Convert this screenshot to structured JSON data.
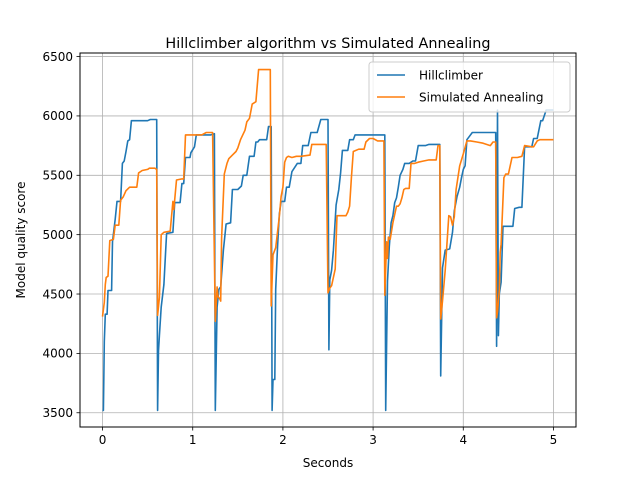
{
  "chart_data": {
    "type": "line",
    "title": "Hillclimber algorithm vs Simulated Annealing",
    "xlabel": "Seconds",
    "ylabel": "Model quality score",
    "xlim": [
      -0.25,
      5.25
    ],
    "ylim": [
      3380,
      6530
    ],
    "xticks": [
      0,
      1,
      2,
      3,
      4,
      5
    ],
    "yticks": [
      3500,
      4000,
      4500,
      5000,
      5500,
      6000,
      6500
    ],
    "grid": true,
    "legend_position": "top-right",
    "series": [
      {
        "name": "Hillclimber",
        "color": "#1f77b4",
        "points": [
          [
            0.0,
            3520
          ],
          [
            0.01,
            3520
          ],
          [
            0.02,
            4100
          ],
          [
            0.03,
            4330
          ],
          [
            0.05,
            4330
          ],
          [
            0.06,
            4530
          ],
          [
            0.1,
            4530
          ],
          [
            0.11,
            4940
          ],
          [
            0.14,
            5130
          ],
          [
            0.16,
            5280
          ],
          [
            0.2,
            5280
          ],
          [
            0.22,
            5600
          ],
          [
            0.24,
            5620
          ],
          [
            0.26,
            5700
          ],
          [
            0.28,
            5790
          ],
          [
            0.3,
            5800
          ],
          [
            0.32,
            5960
          ],
          [
            0.4,
            5960
          ],
          [
            0.43,
            5960
          ],
          [
            0.5,
            5960
          ],
          [
            0.53,
            5970
          ],
          [
            0.6,
            5970
          ],
          [
            0.61,
            3520
          ],
          [
            0.62,
            4020
          ],
          [
            0.63,
            4150
          ],
          [
            0.65,
            4390
          ],
          [
            0.68,
            4580
          ],
          [
            0.7,
            4870
          ],
          [
            0.71,
            5010
          ],
          [
            0.78,
            5020
          ],
          [
            0.8,
            5270
          ],
          [
            0.86,
            5270
          ],
          [
            0.88,
            5430
          ],
          [
            0.9,
            5430
          ],
          [
            0.92,
            5650
          ],
          [
            0.97,
            5650
          ],
          [
            0.98,
            5690
          ],
          [
            1.02,
            5740
          ],
          [
            1.04,
            5840
          ],
          [
            1.1,
            5840
          ],
          [
            1.2,
            5840
          ],
          [
            1.24,
            5850
          ],
          [
            1.25,
            3520
          ],
          [
            1.27,
            4390
          ],
          [
            1.29,
            4540
          ],
          [
            1.31,
            4560
          ],
          [
            1.34,
            4870
          ],
          [
            1.37,
            5090
          ],
          [
            1.42,
            5100
          ],
          [
            1.44,
            5380
          ],
          [
            1.5,
            5380
          ],
          [
            1.54,
            5410
          ],
          [
            1.56,
            5500
          ],
          [
            1.6,
            5500
          ],
          [
            1.63,
            5660
          ],
          [
            1.68,
            5660
          ],
          [
            1.7,
            5780
          ],
          [
            1.72,
            5780
          ],
          [
            1.74,
            5800
          ],
          [
            1.82,
            5800
          ],
          [
            1.84,
            5910
          ],
          [
            1.87,
            5910
          ],
          [
            1.88,
            3520
          ],
          [
            1.89,
            3780
          ],
          [
            1.91,
            3780
          ],
          [
            1.92,
            4540
          ],
          [
            1.94,
            4890
          ],
          [
            1.96,
            5170
          ],
          [
            1.98,
            5280
          ],
          [
            2.02,
            5280
          ],
          [
            2.04,
            5400
          ],
          [
            2.07,
            5400
          ],
          [
            2.1,
            5530
          ],
          [
            2.16,
            5600
          ],
          [
            2.2,
            5600
          ],
          [
            2.22,
            5750
          ],
          [
            2.28,
            5750
          ],
          [
            2.31,
            5860
          ],
          [
            2.36,
            5860
          ],
          [
            2.38,
            5860
          ],
          [
            2.42,
            5970
          ],
          [
            2.47,
            5970
          ],
          [
            2.5,
            5970
          ],
          [
            2.51,
            4030
          ],
          [
            2.52,
            4620
          ],
          [
            2.54,
            4700
          ],
          [
            2.56,
            4870
          ],
          [
            2.59,
            5250
          ],
          [
            2.62,
            5380
          ],
          [
            2.64,
            5520
          ],
          [
            2.66,
            5710
          ],
          [
            2.72,
            5710
          ],
          [
            2.74,
            5800
          ],
          [
            2.78,
            5800
          ],
          [
            2.8,
            5840
          ],
          [
            2.9,
            5840
          ],
          [
            3.0,
            5840
          ],
          [
            3.1,
            5840
          ],
          [
            3.13,
            5840
          ],
          [
            3.14,
            3520
          ],
          [
            3.16,
            4610
          ],
          [
            3.18,
            4900
          ],
          [
            3.2,
            5100
          ],
          [
            3.22,
            5160
          ],
          [
            3.24,
            5270
          ],
          [
            3.26,
            5310
          ],
          [
            3.28,
            5400
          ],
          [
            3.3,
            5500
          ],
          [
            3.33,
            5550
          ],
          [
            3.35,
            5600
          ],
          [
            3.4,
            5600
          ],
          [
            3.44,
            5620
          ],
          [
            3.47,
            5620
          ],
          [
            3.5,
            5750
          ],
          [
            3.58,
            5750
          ],
          [
            3.62,
            5760
          ],
          [
            3.74,
            5760
          ],
          [
            3.75,
            3810
          ],
          [
            3.77,
            4720
          ],
          [
            3.8,
            4870
          ],
          [
            3.85,
            4880
          ],
          [
            3.88,
            5020
          ],
          [
            3.9,
            5200
          ],
          [
            3.93,
            5320
          ],
          [
            3.96,
            5400
          ],
          [
            3.98,
            5480
          ],
          [
            4.0,
            5550
          ],
          [
            4.02,
            5580
          ],
          [
            4.04,
            5800
          ],
          [
            4.06,
            5820
          ],
          [
            4.1,
            5860
          ],
          [
            4.2,
            5860
          ],
          [
            4.3,
            5860
          ],
          [
            4.36,
            5860
          ],
          [
            4.37,
            4060
          ],
          [
            4.38,
            6050
          ],
          [
            4.39,
            4150
          ],
          [
            4.4,
            4500
          ],
          [
            4.42,
            4600
          ],
          [
            4.44,
            5070
          ],
          [
            4.5,
            5070
          ],
          [
            4.55,
            5070
          ],
          [
            4.57,
            5220
          ],
          [
            4.62,
            5230
          ],
          [
            4.65,
            5230
          ],
          [
            4.68,
            5740
          ],
          [
            4.76,
            5740
          ],
          [
            4.78,
            5810
          ],
          [
            4.82,
            5810
          ],
          [
            4.86,
            5960
          ],
          [
            4.88,
            5960
          ],
          [
            4.92,
            6050
          ],
          [
            5.0,
            6050
          ]
        ]
      },
      {
        "name": "Simulated Annealing",
        "color": "#ff7f0e",
        "points": [
          [
            0.0,
            4310
          ],
          [
            0.02,
            4430
          ],
          [
            0.03,
            4580
          ],
          [
            0.04,
            4640
          ],
          [
            0.06,
            4650
          ],
          [
            0.07,
            4800
          ],
          [
            0.08,
            4950
          ],
          [
            0.12,
            4960
          ],
          [
            0.14,
            5080
          ],
          [
            0.18,
            5080
          ],
          [
            0.2,
            5290
          ],
          [
            0.23,
            5320
          ],
          [
            0.26,
            5370
          ],
          [
            0.3,
            5400
          ],
          [
            0.38,
            5400
          ],
          [
            0.4,
            5520
          ],
          [
            0.44,
            5540
          ],
          [
            0.5,
            5550
          ],
          [
            0.52,
            5560
          ],
          [
            0.58,
            5560
          ],
          [
            0.6,
            5550
          ],
          [
            0.61,
            4320
          ],
          [
            0.63,
            4470
          ],
          [
            0.65,
            5000
          ],
          [
            0.68,
            5020
          ],
          [
            0.75,
            5030
          ],
          [
            0.78,
            5280
          ],
          [
            0.79,
            5210
          ],
          [
            0.82,
            5460
          ],
          [
            0.88,
            5470
          ],
          [
            0.9,
            5470
          ],
          [
            0.92,
            5840
          ],
          [
            0.98,
            5840
          ],
          [
            1.05,
            5840
          ],
          [
            1.1,
            5840
          ],
          [
            1.15,
            5860
          ],
          [
            1.22,
            5860
          ],
          [
            1.25,
            4270
          ],
          [
            1.27,
            4560
          ],
          [
            1.28,
            4480
          ],
          [
            1.3,
            4460
          ],
          [
            1.31,
            4440
          ],
          [
            1.32,
            4970
          ],
          [
            1.35,
            5510
          ],
          [
            1.38,
            5600
          ],
          [
            1.4,
            5640
          ],
          [
            1.44,
            5670
          ],
          [
            1.48,
            5700
          ],
          [
            1.5,
            5730
          ],
          [
            1.53,
            5800
          ],
          [
            1.58,
            5880
          ],
          [
            1.6,
            5950
          ],
          [
            1.63,
            5980
          ],
          [
            1.66,
            6100
          ],
          [
            1.7,
            6120
          ],
          [
            1.73,
            6390
          ],
          [
            1.82,
            6390
          ],
          [
            1.86,
            6390
          ],
          [
            1.87,
            4400
          ],
          [
            1.89,
            4830
          ],
          [
            1.92,
            4890
          ],
          [
            1.96,
            5150
          ],
          [
            1.98,
            5320
          ],
          [
            2.0,
            5400
          ],
          [
            2.02,
            5610
          ],
          [
            2.04,
            5650
          ],
          [
            2.06,
            5660
          ],
          [
            2.1,
            5650
          ],
          [
            2.15,
            5660
          ],
          [
            2.2,
            5660
          ],
          [
            2.3,
            5670
          ],
          [
            2.32,
            5760
          ],
          [
            2.4,
            5760
          ],
          [
            2.48,
            5760
          ],
          [
            2.5,
            4510
          ],
          [
            2.52,
            4550
          ],
          [
            2.54,
            4570
          ],
          [
            2.58,
            4710
          ],
          [
            2.6,
            5160
          ],
          [
            2.7,
            5160
          ],
          [
            2.72,
            5190
          ],
          [
            2.74,
            5240
          ],
          [
            2.76,
            5480
          ],
          [
            2.78,
            5700
          ],
          [
            2.84,
            5720
          ],
          [
            2.9,
            5720
          ],
          [
            2.92,
            5780
          ],
          [
            2.96,
            5810
          ],
          [
            3.0,
            5810
          ],
          [
            3.05,
            5790
          ],
          [
            3.1,
            5790
          ],
          [
            3.12,
            5790
          ],
          [
            3.13,
            4490
          ],
          [
            3.15,
            4940
          ],
          [
            3.16,
            4800
          ],
          [
            3.17,
            4980
          ],
          [
            3.19,
            4960
          ],
          [
            3.22,
            5100
          ],
          [
            3.24,
            5170
          ],
          [
            3.26,
            5240
          ],
          [
            3.28,
            5240
          ],
          [
            3.3,
            5260
          ],
          [
            3.32,
            5310
          ],
          [
            3.34,
            5380
          ],
          [
            3.36,
            5390
          ],
          [
            3.4,
            5390
          ],
          [
            3.42,
            5600
          ],
          [
            3.46,
            5600
          ],
          [
            3.5,
            5610
          ],
          [
            3.56,
            5620
          ],
          [
            3.62,
            5630
          ],
          [
            3.7,
            5630
          ],
          [
            3.72,
            5750
          ],
          [
            3.74,
            5750
          ],
          [
            3.75,
            4290
          ],
          [
            3.77,
            4440
          ],
          [
            3.8,
            4700
          ],
          [
            3.84,
            5160
          ],
          [
            3.86,
            5150
          ],
          [
            3.88,
            5080
          ],
          [
            3.9,
            5150
          ],
          [
            3.92,
            5380
          ],
          [
            3.96,
            5580
          ],
          [
            4.0,
            5680
          ],
          [
            4.04,
            5790
          ],
          [
            4.08,
            5790
          ],
          [
            4.15,
            5780
          ],
          [
            4.22,
            5770
          ],
          [
            4.3,
            5750
          ],
          [
            4.33,
            5780
          ],
          [
            4.36,
            5780
          ],
          [
            4.37,
            4300
          ],
          [
            4.38,
            4350
          ],
          [
            4.4,
            4530
          ],
          [
            4.41,
            4850
          ],
          [
            4.42,
            4920
          ],
          [
            4.45,
            5480
          ],
          [
            4.47,
            5510
          ],
          [
            4.5,
            5510
          ],
          [
            4.54,
            5650
          ],
          [
            4.6,
            5650
          ],
          [
            4.65,
            5660
          ],
          [
            4.68,
            5750
          ],
          [
            4.76,
            5740
          ],
          [
            4.78,
            5740
          ],
          [
            4.82,
            5790
          ],
          [
            4.85,
            5800
          ],
          [
            4.9,
            5800
          ],
          [
            5.0,
            5800
          ]
        ]
      }
    ]
  }
}
